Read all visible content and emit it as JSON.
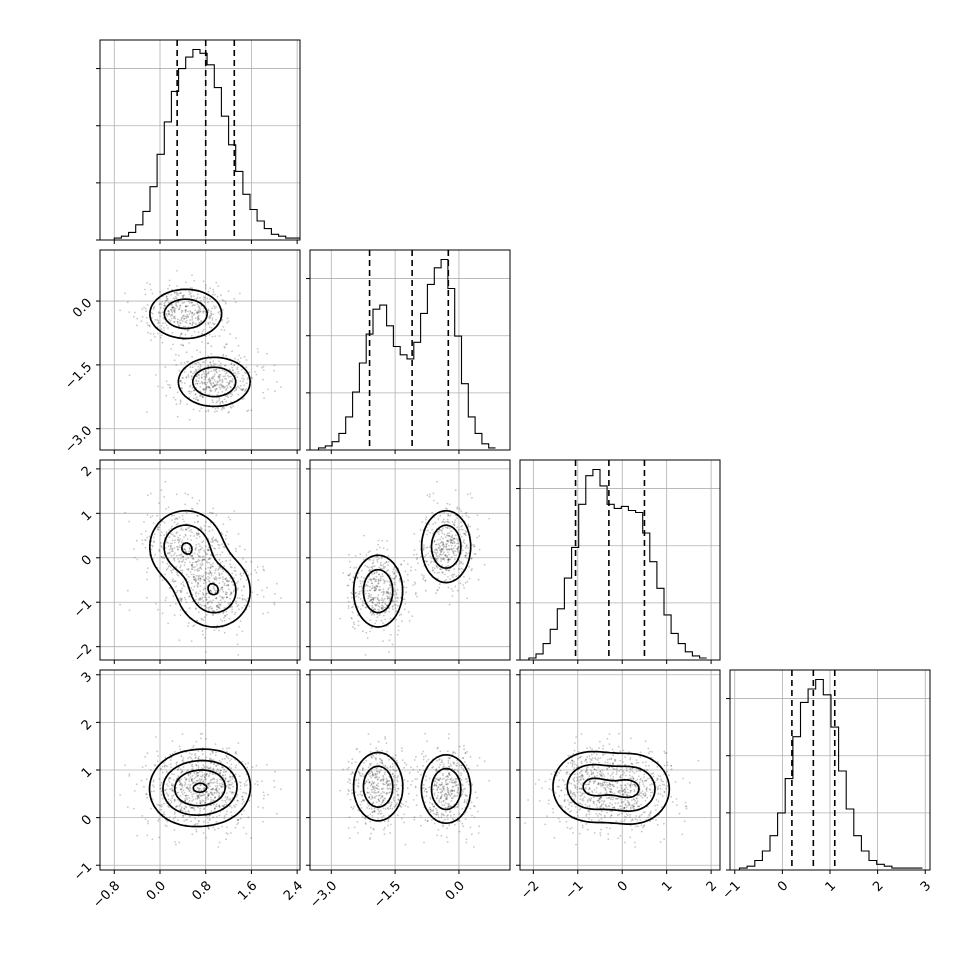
{
  "chart_data": {
    "type": "corner",
    "title": "",
    "parameters": [
      {
        "range": [
          -1.05,
          2.45
        ],
        "ticks": [
          -0.8,
          0.0,
          0.8,
          1.6,
          2.4
        ],
        "tick_labels": [
          "−0.8",
          "0.0",
          "0.8",
          "1.6",
          "2.4"
        ],
        "quantiles": [
          0.3,
          0.8,
          1.3
        ]
      },
      {
        "range": [
          -3.5,
          1.2
        ],
        "ticks": [
          -3.0,
          -1.5,
          0.0
        ],
        "tick_labels": [
          "−3.0",
          "−1.5",
          "0.0"
        ],
        "quantiles": [
          -2.1,
          -1.1,
          -0.25
        ]
      },
      {
        "range": [
          -2.3,
          2.2
        ],
        "ticks": [
          -2,
          -1,
          0,
          1,
          2
        ],
        "tick_labels": [
          "−2",
          "−1",
          "0",
          "1",
          "2"
        ],
        "quantiles": [
          -1.05,
          -0.3,
          0.5
        ]
      },
      {
        "range": [
          -1.1,
          3.1
        ],
        "ticks": [
          -1,
          0,
          1,
          2,
          3
        ],
        "tick_labels": [
          "−1",
          "0",
          "1",
          "2",
          "3"
        ],
        "quantiles": [
          0.2,
          0.65,
          1.1
        ]
      }
    ],
    "histograms": [
      {
        "bin_start": -0.8,
        "bin_width": 0.125,
        "counts": [
          1,
          2,
          4,
          8,
          15,
          28,
          45,
          62,
          78,
          90,
          96,
          100,
          98,
          92,
          80,
          65,
          50,
          36,
          24,
          16,
          10,
          6,
          3,
          2,
          1,
          1
        ]
      },
      {
        "bin_start": -3.3,
        "bin_width": 0.16,
        "counts": [
          1,
          2,
          4,
          8,
          16,
          28,
          42,
          56,
          68,
          70,
          60,
          50,
          46,
          44,
          52,
          66,
          80,
          88,
          92,
          78,
          55,
          32,
          16,
          8,
          3,
          1
        ]
      },
      {
        "bin_start": -2.1,
        "bin_width": 0.16,
        "counts": [
          1,
          3,
          8,
          15,
          25,
          40,
          55,
          76,
          90,
          93,
          85,
          76,
          74,
          75,
          73,
          72,
          62,
          48,
          35,
          22,
          13,
          8,
          4,
          2,
          1
        ]
      },
      {
        "bin_start": -0.9,
        "bin_width": 0.16,
        "counts": [
          1,
          2,
          5,
          10,
          18,
          30,
          48,
          70,
          88,
          95,
          100,
          92,
          75,
          52,
          32,
          18,
          10,
          5,
          3,
          2,
          1,
          1,
          1,
          1
        ]
      }
    ],
    "components": [
      {
        "weight": 0.5,
        "mean": [
          0.45,
          -0.3,
          0.25,
          0.6
        ],
        "sd": [
          0.35,
          0.32,
          0.45,
          0.4
        ]
      },
      {
        "weight": 0.5,
        "mean": [
          0.95,
          -1.9,
          -0.75,
          0.65
        ],
        "sd": [
          0.35,
          0.32,
          0.45,
          0.4
        ]
      }
    ],
    "scatter_points": 900,
    "grid": true,
    "legend": false
  }
}
